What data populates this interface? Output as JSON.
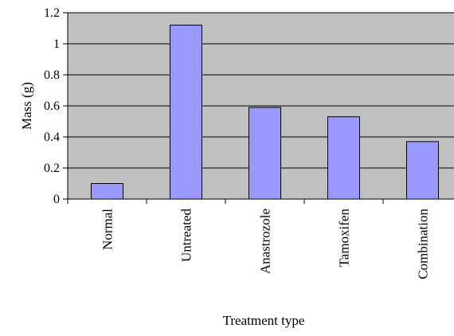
{
  "chart_data": {
    "type": "bar",
    "title": "",
    "xlabel": "Treatment type",
    "ylabel": "Mass (g)",
    "categories": [
      "Normal",
      "Untreated",
      "Anastrozole",
      "Tamoxifen",
      "Combination"
    ],
    "values": [
      0.1,
      1.12,
      0.59,
      0.53,
      0.37
    ],
    "ylim": [
      0,
      1.2
    ],
    "yticks": [
      "0",
      "0.2",
      "0.4",
      "0.6",
      "0.8",
      "1",
      "1.2"
    ],
    "ytick_values": [
      0,
      0.2,
      0.4,
      0.6,
      0.8,
      1.0,
      1.2
    ],
    "grid": "horizontal",
    "legend": "none",
    "colors": {
      "plot_background": "#c0c0c0",
      "bar_fill": "#9999ff",
      "bar_stroke": "#000000",
      "gridline": "#000000"
    }
  }
}
